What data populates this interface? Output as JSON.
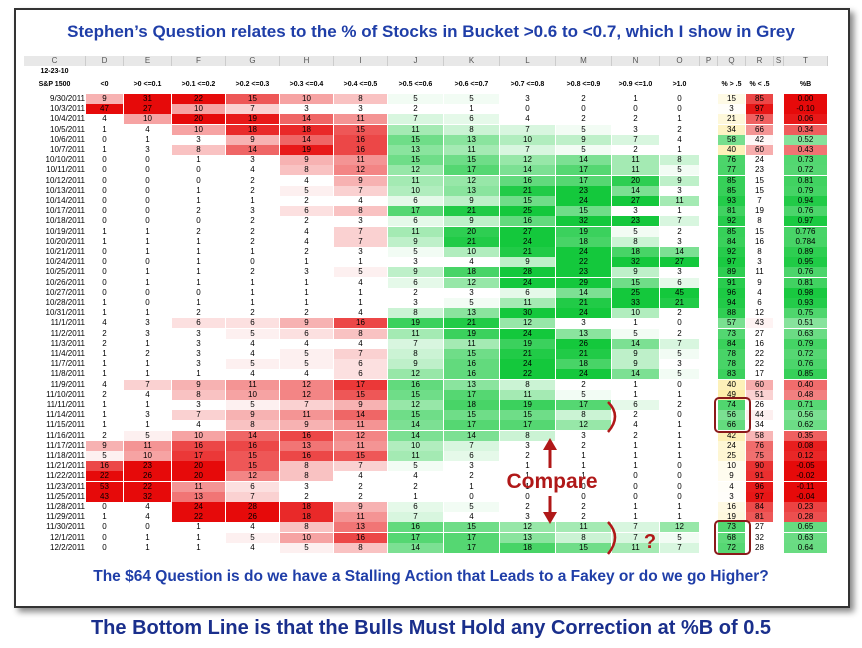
{
  "title": "Stephen’s Question relates to the % of Stocks in Bucket >0.6 to <0.7, which I show in Grey",
  "sheet": {
    "column_letters": [
      "C",
      "D",
      "E",
      "F",
      "G",
      "H",
      "I",
      "J",
      "K",
      "L",
      "M",
      "N",
      "O",
      "P",
      "Q",
      "R",
      "S",
      "T"
    ],
    "date_label": "12-23-10",
    "header": [
      "S&P 1500",
      "<0",
      ">0 <=0.1",
      ">0.1 <=0.2",
      ">0.2 <=0.3",
      ">0.3 <=0.4",
      ">0.4 <=0.5",
      ">0.5 <=0.6",
      ">0.6 <=0.7",
      ">0.7 <=0.8",
      ">0.8 <=0.9",
      ">0.9 <=1.0",
      ">1.0",
      "% > .5",
      "% < .5",
      "%B"
    ],
    "rows": [
      {
        "date": "9/30/2011",
        "buckets": [
          9,
          31,
          22,
          15,
          10,
          8,
          5,
          5,
          3,
          2,
          1,
          0
        ],
        "pct_above": 15,
        "pct_below": 85,
        "pct_b": "0.00"
      },
      {
        "date": "10/3/2011",
        "buckets": [
          47,
          27,
          10,
          7,
          3,
          3,
          2,
          1,
          0,
          0,
          0,
          0
        ],
        "pct_above": 3,
        "pct_below": 97,
        "pct_b": "-0.10"
      },
      {
        "date": "10/4/2011",
        "buckets": [
          4,
          10,
          20,
          19,
          14,
          11,
          7,
          6,
          4,
          2,
          2,
          1
        ],
        "pct_above": 21,
        "pct_below": 79,
        "pct_b": "0.06"
      },
      {
        "date": "10/5/2011",
        "buckets": [
          1,
          4,
          10,
          18,
          18,
          15,
          11,
          8,
          7,
          5,
          3,
          2
        ],
        "pct_above": 34,
        "pct_below": 66,
        "pct_b": "0.34"
      },
      {
        "date": "10/6/2011",
        "buckets": [
          0,
          1,
          3,
          9,
          14,
          16,
          15,
          13,
          10,
          9,
          7,
          4
        ],
        "pct_above": 58,
        "pct_below": 42,
        "pct_b": "0.52"
      },
      {
        "date": "10/7/2011",
        "buckets": [
          1,
          3,
          8,
          14,
          19,
          16,
          13,
          11,
          7,
          5,
          2,
          1
        ],
        "pct_above": 40,
        "pct_below": 60,
        "pct_b": "0.43"
      },
      {
        "date": "10/10/2011",
        "buckets": [
          0,
          0,
          1,
          3,
          9,
          11,
          15,
          15,
          12,
          14,
          11,
          8
        ],
        "pct_above": 76,
        "pct_below": 24,
        "pct_b": "0.73"
      },
      {
        "date": "10/11/2011",
        "buckets": [
          0,
          0,
          0,
          4,
          8,
          12,
          12,
          17,
          14,
          17,
          11,
          5
        ],
        "pct_above": 77,
        "pct_below": 23,
        "pct_b": "0.72"
      },
      {
        "date": "10/12/2011",
        "buckets": [
          0,
          0,
          0,
          2,
          4,
          9,
          11,
          12,
          16,
          17,
          20,
          9
        ],
        "pct_above": 85,
        "pct_below": 15,
        "pct_b": "0.81"
      },
      {
        "date": "10/13/2011",
        "buckets": [
          0,
          0,
          1,
          2,
          5,
          7,
          10,
          13,
          21,
          23,
          14,
          3
        ],
        "pct_above": 85,
        "pct_below": 15,
        "pct_b": "0.79"
      },
      {
        "date": "10/14/2011",
        "buckets": [
          0,
          0,
          1,
          1,
          2,
          4,
          6,
          9,
          15,
          24,
          27,
          11
        ],
        "pct_above": 93,
        "pct_below": 7,
        "pct_b": "0.94"
      },
      {
        "date": "10/17/2011",
        "buckets": [
          0,
          0,
          2,
          3,
          6,
          8,
          17,
          21,
          25,
          15,
          3,
          1
        ],
        "pct_above": 81,
        "pct_below": 19,
        "pct_b": "0.76"
      },
      {
        "date": "10/18/2011",
        "buckets": [
          0,
          0,
          0,
          2,
          2,
          3,
          6,
          9,
          16,
          32,
          23,
          7
        ],
        "pct_above": 92,
        "pct_below": 8,
        "pct_b": "0.97"
      },
      {
        "date": "10/19/2011",
        "buckets": [
          1,
          1,
          2,
          2,
          4,
          7,
          11,
          20,
          27,
          19,
          5,
          2
        ],
        "pct_above": 85,
        "pct_below": 15,
        "pct_b": "0.776"
      },
      {
        "date": "10/20/2011",
        "buckets": [
          1,
          1,
          1,
          2,
          4,
          7,
          9,
          21,
          24,
          18,
          8,
          3
        ],
        "pct_above": 84,
        "pct_below": 16,
        "pct_b": "0.784"
      },
      {
        "date": "10/21/2011",
        "buckets": [
          0,
          1,
          1,
          1,
          2,
          3,
          5,
          10,
          21,
          24,
          18,
          14
        ],
        "pct_above": 92,
        "pct_below": 8,
        "pct_b": "0.89"
      },
      {
        "date": "10/24/2011",
        "buckets": [
          0,
          0,
          1,
          0,
          1,
          1,
          3,
          4,
          9,
          22,
          32,
          27
        ],
        "pct_above": 97,
        "pct_below": 3,
        "pct_b": "0.95"
      },
      {
        "date": "10/25/2011",
        "buckets": [
          0,
          1,
          1,
          2,
          3,
          5,
          9,
          18,
          28,
          23,
          9,
          3
        ],
        "pct_above": 89,
        "pct_below": 11,
        "pct_b": "0.76"
      },
      {
        "date": "10/26/2011",
        "buckets": [
          0,
          1,
          1,
          1,
          1,
          4,
          6,
          12,
          24,
          29,
          15,
          6
        ],
        "pct_above": 91,
        "pct_below": 9,
        "pct_b": "0.81"
      },
      {
        "date": "10/27/2011",
        "buckets": [
          0,
          0,
          0,
          1,
          1,
          1,
          2,
          3,
          6,
          14,
          25,
          45
        ],
        "pct_above": 96,
        "pct_below": 4,
        "pct_b": "0.98"
      },
      {
        "date": "10/28/2011",
        "buckets": [
          1,
          0,
          1,
          1,
          1,
          1,
          3,
          5,
          11,
          21,
          33,
          21
        ],
        "pct_above": 94,
        "pct_below": 6,
        "pct_b": "0.93"
      },
      {
        "date": "10/31/2011",
        "buckets": [
          1,
          1,
          2,
          2,
          2,
          4,
          8,
          13,
          30,
          24,
          10,
          2
        ],
        "pct_above": 88,
        "pct_below": 12,
        "pct_b": "0.75"
      },
      {
        "date": "11/1/2011",
        "buckets": [
          4,
          3,
          6,
          6,
          9,
          16,
          19,
          21,
          12,
          3,
          1,
          0
        ],
        "pct_above": 57,
        "pct_below": 43,
        "pct_b": "0.51"
      },
      {
        "date": "11/2/2011",
        "buckets": [
          2,
          3,
          3,
          5,
          6,
          8,
          11,
          19,
          24,
          13,
          5,
          2
        ],
        "pct_above": 73,
        "pct_below": 27,
        "pct_b": "0.63"
      },
      {
        "date": "11/3/2011",
        "buckets": [
          2,
          1,
          3,
          4,
          4,
          4,
          7,
          11,
          19,
          26,
          14,
          7
        ],
        "pct_above": 84,
        "pct_below": 16,
        "pct_b": "0.79"
      },
      {
        "date": "11/4/2011",
        "buckets": [
          1,
          2,
          3,
          4,
          5,
          7,
          8,
          15,
          21,
          21,
          9,
          5
        ],
        "pct_above": 78,
        "pct_below": 22,
        "pct_b": "0.72"
      },
      {
        "date": "11/7/2011",
        "buckets": [
          1,
          1,
          3,
          5,
          5,
          6,
          9,
          16,
          24,
          18,
          9,
          3
        ],
        "pct_above": 78,
        "pct_below": 22,
        "pct_b": "0.76"
      },
      {
        "date": "11/8/2011",
        "buckets": [
          1,
          1,
          1,
          4,
          4,
          6,
          12,
          16,
          22,
          24,
          14,
          5
        ],
        "pct_above": 83,
        "pct_below": 17,
        "pct_b": "0.85"
      },
      {
        "date": "11/9/2011",
        "buckets": [
          4,
          7,
          9,
          11,
          12,
          17,
          16,
          13,
          8,
          2,
          1,
          0
        ],
        "pct_above": 40,
        "pct_below": 60,
        "pct_b": "0.40"
      },
      {
        "date": "11/10/2011",
        "buckets": [
          2,
          4,
          8,
          10,
          12,
          15,
          15,
          17,
          11,
          5,
          1,
          1
        ],
        "pct_above": 49,
        "pct_below": 51,
        "pct_b": "0.48"
      },
      {
        "date": "11/11/2011",
        "buckets": [
          1,
          1,
          3,
          5,
          7,
          9,
          12,
          18,
          19,
          17,
          6,
          2
        ],
        "pct_above": 74,
        "pct_below": 26,
        "pct_b": "0.71"
      },
      {
        "date": "11/14/2011",
        "buckets": [
          1,
          3,
          7,
          9,
          11,
          14,
          15,
          15,
          15,
          8,
          2,
          0
        ],
        "pct_above": 56,
        "pct_below": 44,
        "pct_b": "0.56"
      },
      {
        "date": "11/15/2011",
        "buckets": [
          1,
          1,
          4,
          8,
          9,
          11,
          14,
          17,
          17,
          12,
          4,
          1
        ],
        "pct_above": 66,
        "pct_below": 34,
        "pct_b": "0.62"
      },
      {
        "date": "11/16/2011",
        "buckets": [
          2,
          5,
          10,
          14,
          16,
          12,
          14,
          14,
          8,
          3,
          2,
          1
        ],
        "pct_above": 42,
        "pct_below": 58,
        "pct_b": "0.35"
      },
      {
        "date": "11/17/2011",
        "buckets": [
          9,
          11,
          16,
          16,
          13,
          11,
          10,
          7,
          3,
          2,
          1,
          1
        ],
        "pct_above": 24,
        "pct_below": 76,
        "pct_b": "0.08"
      },
      {
        "date": "11/18/2011",
        "buckets": [
          5,
          10,
          17,
          15,
          16,
          15,
          11,
          6,
          2,
          1,
          1,
          1
        ],
        "pct_above": 25,
        "pct_below": 75,
        "pct_b": "0.12"
      },
      {
        "date": "11/21/2011",
        "buckets": [
          16,
          23,
          20,
          15,
          8,
          7,
          5,
          3,
          1,
          1,
          1,
          0
        ],
        "pct_above": 10,
        "pct_below": 90,
        "pct_b": "-0.05"
      },
      {
        "date": "11/22/2011",
        "buckets": [
          22,
          26,
          20,
          12,
          8,
          4,
          4,
          2,
          1,
          1,
          0,
          0
        ],
        "pct_above": 9,
        "pct_below": 91,
        "pct_b": "-0.02"
      },
      {
        "date": "11/23/2011",
        "buckets": [
          53,
          22,
          11,
          6,
          3,
          2,
          2,
          1,
          1,
          0,
          0,
          0
        ],
        "pct_above": 4,
        "pct_below": 96,
        "pct_b": "-0.11"
      },
      {
        "date": "11/25/2011",
        "buckets": [
          43,
          32,
          13,
          7,
          2,
          2,
          1,
          0,
          0,
          0,
          0,
          0
        ],
        "pct_above": 3,
        "pct_below": 97,
        "pct_b": "-0.04"
      },
      {
        "date": "11/28/2011",
        "buckets": [
          0,
          4,
          24,
          28,
          18,
          9,
          6,
          5,
          2,
          2,
          1,
          1
        ],
        "pct_above": 16,
        "pct_below": 84,
        "pct_b": "0.23"
      },
      {
        "date": "11/29/2011",
        "buckets": [
          1,
          4,
          22,
          26,
          18,
          11,
          7,
          4,
          3,
          2,
          1,
          1
        ],
        "pct_above": 19,
        "pct_below": 81,
        "pct_b": "0.28"
      },
      {
        "date": "11/30/2011",
        "buckets": [
          0,
          0,
          1,
          4,
          8,
          13,
          16,
          15,
          12,
          11,
          7,
          12
        ],
        "pct_above": 73,
        "pct_below": 27,
        "pct_b": "0.65"
      },
      {
        "date": "12/1/2011",
        "buckets": [
          0,
          1,
          1,
          5,
          10,
          16,
          17,
          17,
          13,
          8,
          7,
          5
        ],
        "pct_above": 68,
        "pct_below": 32,
        "pct_b": "0.63"
      },
      {
        "date": "12/2/2011",
        "buckets": [
          0,
          1,
          1,
          4,
          5,
          8,
          14,
          17,
          18,
          15,
          11,
          7
        ],
        "pct_above": 72,
        "pct_below": 28,
        "pct_b": "0.64"
      }
    ]
  },
  "annotations": {
    "compare": "Compare",
    "question": "?"
  },
  "caption": "The $64 Question is do we have a Stalling Action that Leads to a Fakey or do we go Higher?",
  "bottom_line": "The Bottom Line is that the Bulls Must Hold any Correction at %B of 0.5"
}
